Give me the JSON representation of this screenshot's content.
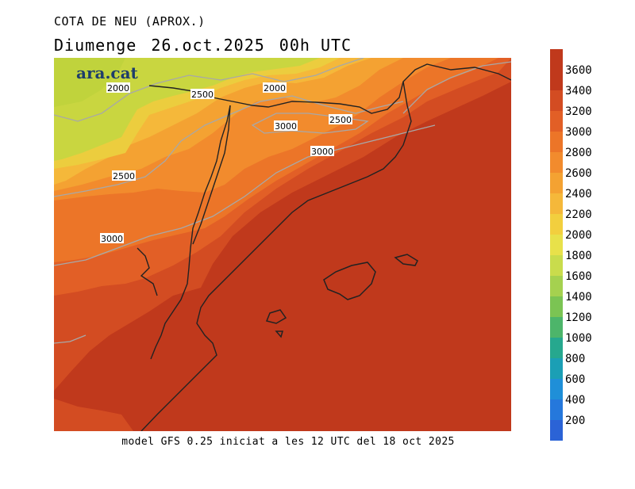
{
  "header": {
    "variable_title": "COTA DE NEU (APROX.)",
    "day": "Diumenge",
    "date": "26.oct.2025",
    "time": "00h UTC"
  },
  "brand": "ara.cat",
  "contour_labels": [
    "2000",
    "2500",
    "2000",
    "3000",
    "2500",
    "3000",
    "2500",
    "3000"
  ],
  "footer": "model GFS 0.25 iniciat a les 12 UTC del 18 oct 2025",
  "legend": {
    "labels": [
      "3600",
      "3400",
      "3200",
      "3000",
      "2800",
      "2600",
      "2400",
      "2200",
      "2000",
      "1800",
      "1600",
      "1400",
      "1200",
      "1000",
      "800",
      "600",
      "400",
      "200"
    ],
    "colors": [
      "#c0391c",
      "#d34c22",
      "#e25f26",
      "#ec7528",
      "#f28b2d",
      "#f4a232",
      "#f5b83a",
      "#f2cf3e",
      "#e8e14a",
      "#c9dc4c",
      "#a5d14f",
      "#7bc453",
      "#4db56a",
      "#26a88e",
      "#1b9fb5",
      "#1f8fd8",
      "#2578dc",
      "#2b63d6"
    ]
  },
  "map_colors": {
    "c3600": "#c0391c",
    "c3400": "#d34c22",
    "c3200": "#e25f26",
    "c3000": "#ec7528",
    "c2800": "#f28b2d",
    "c2600": "#f4a232",
    "c2400": "#f5b83a",
    "c2200": "#eccd3e",
    "c2000": "#c9d640"
  }
}
